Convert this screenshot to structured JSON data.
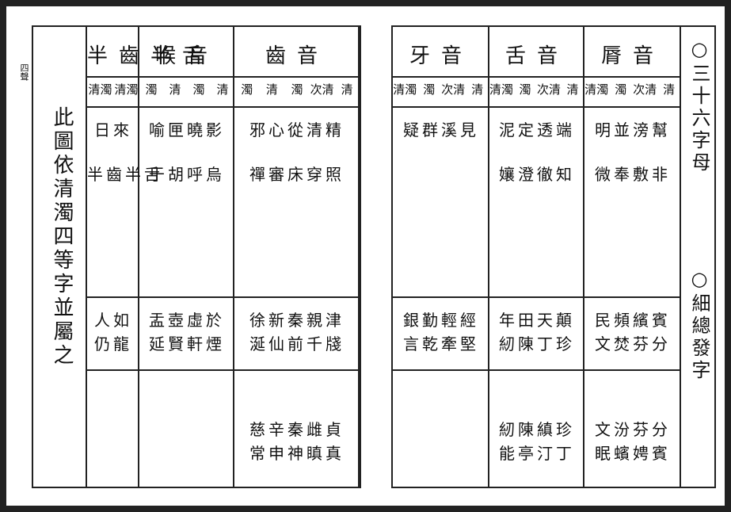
{
  "margin_mark": "四聲",
  "left_page": {
    "note": "此圖依清濁四等字並屬之",
    "groups": [
      {
        "title": "半齒半舌",
        "subs": [
          "清濁",
          "清濁"
        ],
        "rows": [
          [
            "日來",
            "半齒半舌"
          ],
          [
            "人如",
            "仍龍"
          ],
          []
        ]
      },
      {
        "title": "喉音",
        "subs": [
          "清",
          "濁",
          "清",
          "濁"
        ],
        "rows": [
          [
            "喻匣曉影",
            "于胡呼烏"
          ],
          [
            "盂壺虛於",
            "延賢軒煙"
          ],
          []
        ]
      },
      {
        "title": "齒音",
        "subs": [
          "清",
          "次清",
          "濁",
          "清",
          "濁"
        ],
        "rows": [
          [
            "邪心從清精",
            "禪審床穿照"
          ],
          [
            "徐新秦親津",
            "涎仙前千牋"
          ],
          [
            "慈辛秦雌貞",
            "常申神瞋真"
          ]
        ]
      }
    ]
  },
  "right_page": {
    "groups": [
      {
        "title": "牙音",
        "subs": [
          "清",
          "次清",
          "濁",
          "清濁"
        ],
        "rows": [
          [
            "疑群溪見"
          ],
          [
            "銀勤輕經",
            "言乾牽堅"
          ],
          []
        ]
      },
      {
        "title": "舌音",
        "subs": [
          "清",
          "次清",
          "濁",
          "清濁"
        ],
        "rows": [
          [
            "泥定透端",
            "孃澄徹知"
          ],
          [
            "年田天顛",
            "紉陳丁珍"
          ],
          [
            "紉陳縝珍",
            "能亭汀丁"
          ]
        ]
      },
      {
        "title": "脣音",
        "subs": [
          "清",
          "次清",
          "濁",
          "清濁"
        ],
        "rows": [
          [
            "明並滂幫",
            "微奉敷非"
          ],
          [
            "民頻繽賓",
            "文焚芬分"
          ],
          [
            "文汾芬分",
            "眠蠙娉賓"
          ]
        ]
      }
    ],
    "side": [
      "○三十六字母",
      "○細總發字"
    ]
  }
}
